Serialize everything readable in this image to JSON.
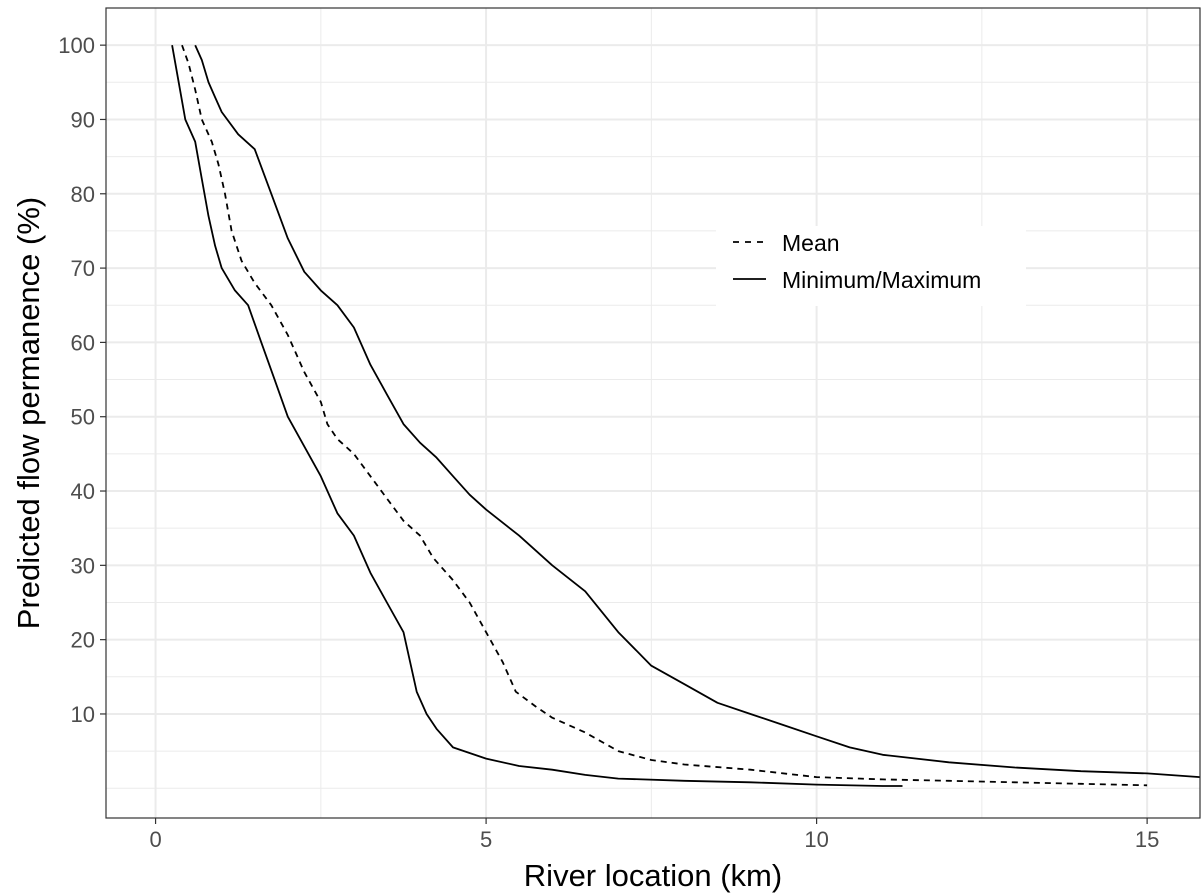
{
  "chart_data": {
    "type": "line",
    "title": "",
    "xlabel": "River location (km)",
    "ylabel": "Predicted flow permanence (%)",
    "xlim": [
      -0.75,
      15.8
    ],
    "ylim": [
      -4,
      105
    ],
    "xticks": [
      0,
      5,
      10,
      15
    ],
    "yticks": [
      10,
      20,
      30,
      40,
      50,
      60,
      70,
      80,
      90,
      100
    ],
    "xtick_labels": [
      "0",
      "5",
      "10",
      "15"
    ],
    "ytick_labels": [
      "10",
      "20",
      "30",
      "40",
      "50",
      "60",
      "70",
      "80",
      "90",
      "100"
    ],
    "grid": true,
    "legend_position": "center-right",
    "colors": {
      "line": "#000000",
      "grid": "#ebebeb",
      "panel_border": "#333333"
    },
    "legend": [
      {
        "label": "Mean",
        "style": "dashed"
      },
      {
        "label": "Minimum/Maximum",
        "style": "solid"
      }
    ],
    "series": [
      {
        "legend_ref": "Mean",
        "style": "dashed",
        "points": [
          [
            0.4,
            100
          ],
          [
            0.5,
            97.5
          ],
          [
            0.6,
            94
          ],
          [
            0.7,
            90
          ],
          [
            0.85,
            87
          ],
          [
            0.95,
            84
          ],
          [
            1.05,
            80
          ],
          [
            1.15,
            75
          ],
          [
            1.3,
            71
          ],
          [
            1.5,
            68
          ],
          [
            1.75,
            65
          ],
          [
            2.0,
            61
          ],
          [
            2.25,
            56
          ],
          [
            2.5,
            52
          ],
          [
            2.6,
            49
          ],
          [
            2.75,
            47
          ],
          [
            3.0,
            45
          ],
          [
            3.25,
            42
          ],
          [
            3.5,
            39
          ],
          [
            3.75,
            36
          ],
          [
            4.0,
            34
          ],
          [
            4.2,
            31
          ],
          [
            4.5,
            28
          ],
          [
            4.75,
            25
          ],
          [
            5.0,
            21
          ],
          [
            5.25,
            17
          ],
          [
            5.45,
            13
          ],
          [
            5.75,
            11
          ],
          [
            6.0,
            9.5
          ],
          [
            6.5,
            7.5
          ],
          [
            7.0,
            5
          ],
          [
            7.5,
            3.8
          ],
          [
            8.0,
            3.2
          ],
          [
            9.0,
            2.5
          ],
          [
            10.0,
            1.5
          ],
          [
            11.0,
            1.2
          ],
          [
            12.0,
            1
          ],
          [
            13.0,
            0.8
          ],
          [
            14.0,
            0.6
          ],
          [
            15.0,
            0.4
          ]
        ]
      },
      {
        "legend_ref": "Minimum/Maximum",
        "name": "Minimum",
        "style": "solid",
        "points": [
          [
            0.25,
            100
          ],
          [
            0.35,
            95
          ],
          [
            0.45,
            90
          ],
          [
            0.6,
            87
          ],
          [
            0.7,
            82
          ],
          [
            0.8,
            77
          ],
          [
            0.9,
            73
          ],
          [
            1.0,
            70
          ],
          [
            1.2,
            67
          ],
          [
            1.4,
            65
          ],
          [
            1.6,
            60
          ],
          [
            1.8,
            55
          ],
          [
            2.0,
            50
          ],
          [
            2.25,
            46
          ],
          [
            2.5,
            42
          ],
          [
            2.75,
            37
          ],
          [
            3.0,
            34
          ],
          [
            3.25,
            29
          ],
          [
            3.5,
            25
          ],
          [
            3.75,
            21
          ],
          [
            3.85,
            17
          ],
          [
            3.95,
            13
          ],
          [
            4.1,
            10
          ],
          [
            4.25,
            8
          ],
          [
            4.5,
            5.5
          ],
          [
            5.0,
            4
          ],
          [
            5.5,
            3
          ],
          [
            6.0,
            2.5
          ],
          [
            6.5,
            1.8
          ],
          [
            7.0,
            1.3
          ],
          [
            8.0,
            1
          ],
          [
            9.0,
            0.8
          ],
          [
            10.0,
            0.5
          ],
          [
            11.0,
            0.3
          ],
          [
            11.3,
            0.3
          ]
        ]
      },
      {
        "legend_ref": "Minimum/Maximum",
        "name": "Maximum",
        "style": "solid",
        "points": [
          [
            0.6,
            100
          ],
          [
            0.7,
            98
          ],
          [
            0.8,
            95
          ],
          [
            0.9,
            93
          ],
          [
            1.0,
            91
          ],
          [
            1.25,
            88
          ],
          [
            1.5,
            86
          ],
          [
            1.75,
            80
          ],
          [
            2.0,
            74
          ],
          [
            2.25,
            69.5
          ],
          [
            2.5,
            67
          ],
          [
            2.75,
            65
          ],
          [
            3.0,
            62
          ],
          [
            3.25,
            57
          ],
          [
            3.5,
            53
          ],
          [
            3.75,
            49
          ],
          [
            4.0,
            46.5
          ],
          [
            4.25,
            44.5
          ],
          [
            4.5,
            42
          ],
          [
            4.75,
            39.5
          ],
          [
            5.0,
            37.5
          ],
          [
            5.5,
            34
          ],
          [
            6.0,
            30
          ],
          [
            6.5,
            26.5
          ],
          [
            7.0,
            21
          ],
          [
            7.5,
            16.5
          ],
          [
            8.0,
            14
          ],
          [
            8.5,
            11.5
          ],
          [
            9.0,
            10
          ],
          [
            9.5,
            8.5
          ],
          [
            10.0,
            7
          ],
          [
            10.5,
            5.5
          ],
          [
            11.0,
            4.5
          ],
          [
            12.0,
            3.5
          ],
          [
            13.0,
            2.8
          ],
          [
            14.0,
            2.3
          ],
          [
            15.0,
            2
          ],
          [
            15.8,
            1.5
          ]
        ]
      }
    ]
  }
}
